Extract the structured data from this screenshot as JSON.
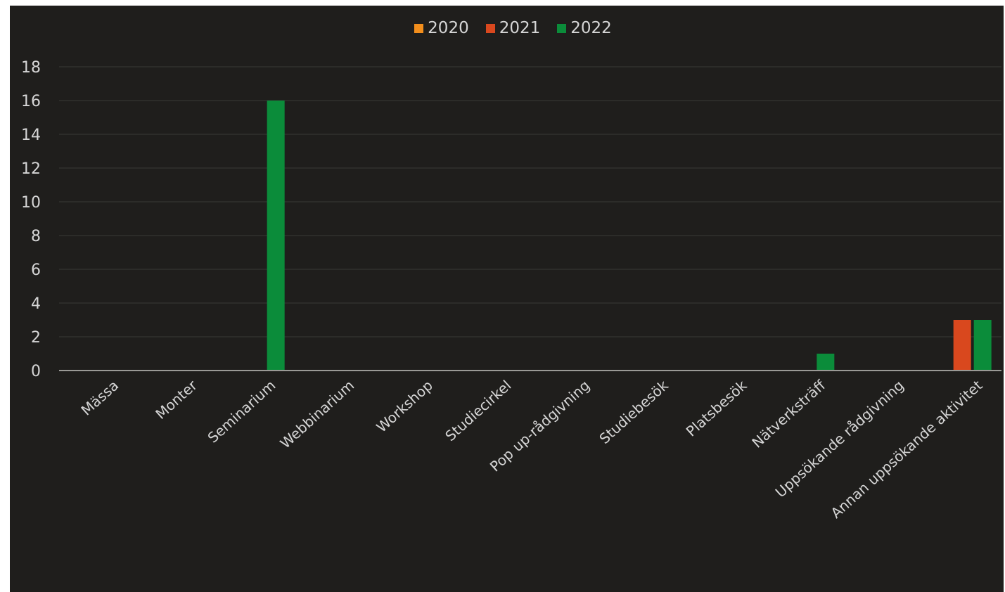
{
  "chart_data": {
    "type": "bar",
    "categories": [
      "Mässa",
      "Monter",
      "Seminarium",
      "Webbinarium",
      "Workshop",
      "Studiecirkel",
      "Pop up-rådgivning",
      "Studiebesök",
      "Platsbesök",
      "Nätverksträff",
      "Uppsökande rådgivning",
      "Annan uppsökande aktivitet"
    ],
    "series": [
      {
        "name": "2020",
        "color": "#f28e1c",
        "values": [
          0,
          0,
          0,
          0,
          0,
          0,
          0,
          0,
          0,
          0,
          0,
          0
        ]
      },
      {
        "name": "2021",
        "color": "#d9481e",
        "values": [
          0,
          0,
          0,
          0,
          0,
          0,
          0,
          0,
          0,
          0,
          0,
          3
        ]
      },
      {
        "name": "2022",
        "color": "#0b8c3a",
        "values": [
          0,
          0,
          16,
          0,
          0,
          0,
          0,
          0,
          0,
          1,
          0,
          3
        ]
      }
    ],
    "ylim": [
      0,
      18
    ],
    "yticks": [
      "0",
      "2",
      "4",
      "6",
      "8",
      "10",
      "12",
      "14",
      "16",
      "18"
    ],
    "legend_position": "top-center",
    "grid": true
  }
}
